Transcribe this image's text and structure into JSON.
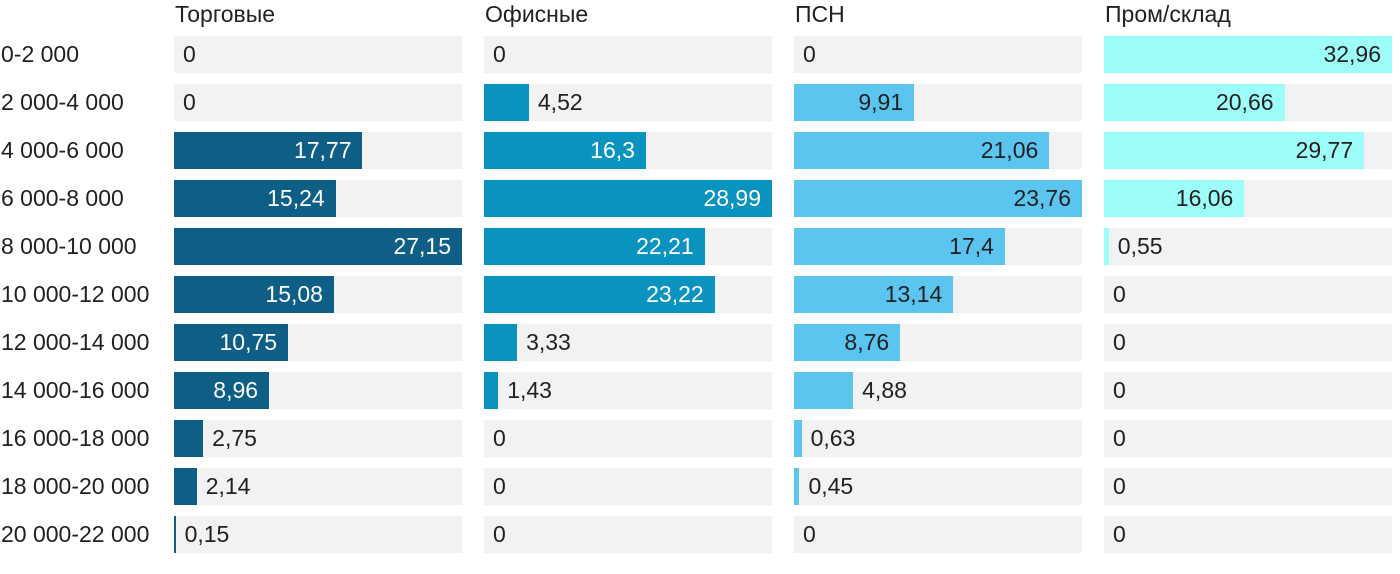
{
  "chart_data": {
    "type": "bar",
    "orientation": "horizontal",
    "grid": "off",
    "value_format": "comma-decimal",
    "track_color": "#f2f2f2",
    "text_color": "#212121",
    "categories": [
      "0-2 000",
      "2 000-4 000",
      "4 000-6 000",
      "6 000-8 000",
      "8 000-10 000",
      "10 000-12 000",
      "12 000-14 000",
      "14 000-16 000",
      "16 000-18 000",
      "18 000-20 000",
      "20 000-22 000"
    ],
    "series": [
      {
        "name": "Торговые",
        "color": "#0e5e86",
        "label_color_inside": "#ffffff",
        "values": [
          0,
          0,
          17.77,
          15.24,
          27.15,
          15.08,
          10.75,
          8.96,
          2.75,
          2.14,
          0.15
        ],
        "labels": [
          "0",
          "0",
          "17,77",
          "15,24",
          "27,15",
          "15,08",
          "10,75",
          "8,96",
          "2,75",
          "2,14",
          "0,15"
        ]
      },
      {
        "name": "Офисные",
        "color": "#0a93be",
        "label_color_inside": "#ffffff",
        "values": [
          0,
          4.52,
          16.3,
          28.99,
          22.21,
          23.22,
          3.33,
          1.43,
          0,
          0,
          0
        ],
        "labels": [
          "0",
          "4,52",
          "16,3",
          "28,99",
          "22,21",
          "23,22",
          "3,33",
          "1,43",
          "0",
          "0",
          "0"
        ]
      },
      {
        "name": "ПСН",
        "color": "#5bc5f0",
        "label_color_inside": "#212121",
        "values": [
          0,
          9.91,
          21.06,
          23.76,
          17.4,
          13.14,
          8.76,
          4.88,
          0.63,
          0.45,
          0
        ],
        "labels": [
          "0",
          "9,91",
          "21,06",
          "23,76",
          "17,4",
          "13,14",
          "8,76",
          "4,88",
          "0,63",
          "0,45",
          "0"
        ]
      },
      {
        "name": "Пром/склад",
        "color": "#9dfdf8",
        "label_color_inside": "#212121",
        "values": [
          32.96,
          20.66,
          29.77,
          16.06,
          0.55,
          0,
          0,
          0,
          0,
          0,
          0
        ],
        "labels": [
          "32,96",
          "20,66",
          "29,77",
          "16,06",
          "0,55",
          "0",
          "0",
          "0",
          "0",
          "0",
          "0"
        ]
      }
    ],
    "scaling": "per-column: each column max value fills full track width",
    "column_max": [
      27.15,
      28.99,
      23.76,
      32.96
    ]
  }
}
